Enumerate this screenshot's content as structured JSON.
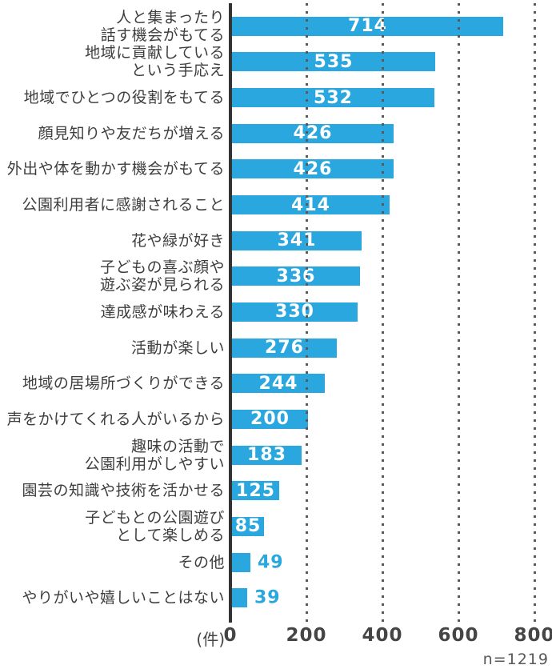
{
  "chart_data": {
    "type": "bar",
    "orientation": "horizontal",
    "title": "",
    "unit_label": "(件)",
    "n_label": "n=1219",
    "xlim": [
      0,
      800
    ],
    "x_ticks": [
      "0",
      "200",
      "400",
      "600",
      "800"
    ],
    "x_tick_values": [
      0,
      200,
      400,
      600,
      800
    ],
    "grid": "dotted-vertical",
    "bar_color": "#29a7de",
    "label_color": "#3e3e3e",
    "tick_color": "#454545",
    "rows": [
      {
        "label_lines": [
          "人と集まったり",
          "話す機会がもてる"
        ],
        "value": 714,
        "value_inside": true
      },
      {
        "label_lines": [
          "地域に貢献している",
          "という手応え"
        ],
        "value": 535,
        "value_inside": true
      },
      {
        "label_lines": [
          "地域でひとつの役割をもてる"
        ],
        "value": 532,
        "value_inside": true
      },
      {
        "label_lines": [
          "顔見知りや友だちが増える"
        ],
        "value": 426,
        "value_inside": true
      },
      {
        "label_lines": [
          "外出や体を動かす機会がもてる"
        ],
        "value": 426,
        "value_inside": true
      },
      {
        "label_lines": [
          "公園利用者に感謝されること"
        ],
        "value": 414,
        "value_inside": true
      },
      {
        "label_lines": [
          "花や緑が好き"
        ],
        "value": 341,
        "value_inside": true
      },
      {
        "label_lines": [
          "子どもの喜ぶ顔や",
          "遊ぶ姿が見られる"
        ],
        "value": 336,
        "value_inside": true
      },
      {
        "label_lines": [
          "達成感が味わえる"
        ],
        "value": 330,
        "value_inside": true
      },
      {
        "label_lines": [
          "活動が楽しい"
        ],
        "value": 276,
        "value_inside": true
      },
      {
        "label_lines": [
          "地域の居場所づくりができる"
        ],
        "value": 244,
        "value_inside": true
      },
      {
        "label_lines": [
          "声をかけてくれる人がいるから"
        ],
        "value": 200,
        "value_inside": true
      },
      {
        "label_lines": [
          "趣味の活動で",
          "公園利用がしやすい"
        ],
        "value": 183,
        "value_inside": true
      },
      {
        "label_lines": [
          "園芸の知識や技術を活かせる"
        ],
        "value": 125,
        "value_inside": true
      },
      {
        "label_lines": [
          "子どもとの公園遊び",
          "として楽しめる"
        ],
        "value": 85,
        "value_inside": true
      },
      {
        "label_lines": [
          "その他"
        ],
        "value": 49,
        "value_inside": false
      },
      {
        "label_lines": [
          "やりがいや嬉しいことはない"
        ],
        "value": 39,
        "value_inside": false
      }
    ]
  }
}
